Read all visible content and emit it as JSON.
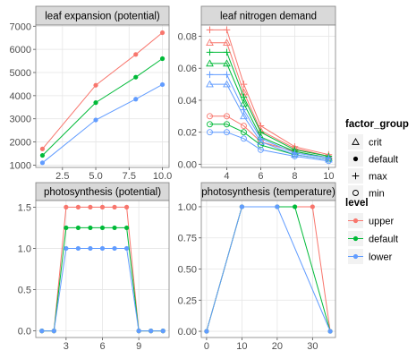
{
  "colors": {
    "upper": "#F8766D",
    "default": "#00BA38",
    "lower": "#619CFF",
    "panel_bg": "#FFFFFF",
    "panel_border": "#7F7F7F",
    "grid_major": "#E5E5E5",
    "strip_bg": "#D9D9D9",
    "strip_border": "#7F7F7F",
    "text": "#000000",
    "tick_text": "#4D4D4D"
  },
  "chart_data": [
    {
      "type": "line",
      "title": "leaf expansion (potential)",
      "xlim": [
        0.5,
        10.5
      ],
      "ylim": [
        900,
        7050
      ],
      "xticks": [
        2.5,
        5.0,
        7.5,
        10.0
      ],
      "xtick_labels": [
        "2.5",
        "5.0",
        "7.5",
        "10.0"
      ],
      "yticks": [
        1000,
        2000,
        3000,
        4000,
        5000,
        6000,
        7000
      ],
      "ytick_labels": [
        "1000",
        "2000",
        "3000",
        "4000",
        "5000",
        "6000",
        "7000"
      ],
      "grid": true,
      "x": [
        1,
        5,
        8,
        10
      ],
      "series": [
        {
          "level": "upper",
          "values": [
            1700,
            4450,
            5780,
            6720
          ]
        },
        {
          "level": "default",
          "values": [
            1420,
            3700,
            4800,
            5600
          ]
        },
        {
          "level": "lower",
          "values": [
            1100,
            2950,
            3850,
            4480
          ]
        }
      ]
    },
    {
      "type": "line",
      "title": "leaf nitrogen demand",
      "xlim": [
        2.5,
        10.4
      ],
      "ylim": [
        -0.002,
        0.087
      ],
      "xticks": [
        4,
        6,
        8,
        10
      ],
      "xtick_labels": [
        "4",
        "6",
        "8",
        "10"
      ],
      "yticks": [
        0.0,
        0.02,
        0.04,
        0.06,
        0.08
      ],
      "ytick_labels": [
        "0.00",
        "0.02",
        "0.04",
        "0.06",
        "0.08"
      ],
      "grid": true,
      "x": [
        3,
        4,
        5,
        6,
        8,
        10
      ],
      "series": [
        {
          "level": "upper",
          "factor_group": "max",
          "values": [
            0.084,
            0.084,
            0.05,
            0.024,
            0.011,
            0.006
          ]
        },
        {
          "level": "upper",
          "factor_group": "crit",
          "values": [
            0.076,
            0.076,
            0.045,
            0.021,
            0.01,
            0.005
          ]
        },
        {
          "level": "upper",
          "factor_group": "min",
          "values": [
            0.03,
            0.03,
            0.024,
            0.014,
            0.008,
            0.004
          ]
        },
        {
          "level": "default",
          "factor_group": "max",
          "values": [
            0.07,
            0.07,
            0.042,
            0.02,
            0.009,
            0.005
          ]
        },
        {
          "level": "default",
          "factor_group": "crit",
          "values": [
            0.063,
            0.063,
            0.038,
            0.017,
            0.008,
            0.004
          ]
        },
        {
          "level": "default",
          "factor_group": "min",
          "values": [
            0.025,
            0.025,
            0.02,
            0.012,
            0.006,
            0.003
          ]
        },
        {
          "level": "lower",
          "factor_group": "max",
          "values": [
            0.056,
            0.056,
            0.034,
            0.016,
            0.007,
            0.004
          ]
        },
        {
          "level": "lower",
          "factor_group": "crit",
          "values": [
            0.05,
            0.05,
            0.03,
            0.014,
            0.006,
            0.003
          ]
        },
        {
          "level": "lower",
          "factor_group": "min",
          "values": [
            0.02,
            0.02,
            0.016,
            0.009,
            0.005,
            0.002
          ]
        }
      ]
    },
    {
      "type": "line",
      "title": "photosynthesis (potential)",
      "xlim": [
        0.5,
        11.5
      ],
      "ylim": [
        -0.08,
        1.58
      ],
      "xticks": [
        3,
        6,
        9
      ],
      "xtick_labels": [
        "3",
        "6",
        "9"
      ],
      "yticks": [
        0.0,
        0.5,
        1.0,
        1.5
      ],
      "ytick_labels": [
        "0.0",
        "0.5",
        "1.0",
        "1.5"
      ],
      "grid": true,
      "x": [
        1,
        2,
        3,
        4,
        5,
        6,
        7,
        8,
        9,
        10,
        11
      ],
      "series": [
        {
          "level": "upper",
          "values": [
            0,
            0,
            1.5,
            1.5,
            1.5,
            1.5,
            1.5,
            1.5,
            0,
            0,
            0
          ]
        },
        {
          "level": "default",
          "values": [
            0,
            0,
            1.25,
            1.25,
            1.25,
            1.25,
            1.25,
            1.25,
            0,
            0,
            0
          ]
        },
        {
          "level": "lower",
          "values": [
            0,
            0,
            1.0,
            1.0,
            1.0,
            1.0,
            1.0,
            1.0,
            0,
            0,
            0
          ]
        }
      ]
    },
    {
      "type": "line",
      "title": "photosynthesis (temperature)",
      "xlim": [
        -1.5,
        36.5
      ],
      "ylim": [
        -0.05,
        1.05
      ],
      "xticks": [
        0,
        10,
        20,
        30
      ],
      "xtick_labels": [
        "0",
        "10",
        "20",
        "30"
      ],
      "yticks": [
        0.0,
        0.25,
        0.5,
        0.75,
        1.0
      ],
      "ytick_labels": [
        "0.00",
        "0.25",
        "0.50",
        "0.75",
        "1.00"
      ],
      "grid": true,
      "series": [
        {
          "level": "upper",
          "x": [
            0,
            10,
            20,
            30,
            35
          ],
          "values": [
            0,
            1,
            1,
            1,
            0
          ]
        },
        {
          "level": "default",
          "x": [
            0,
            10,
            20,
            25,
            35
          ],
          "values": [
            0,
            1,
            1,
            1,
            0
          ]
        },
        {
          "level": "lower",
          "x": [
            0,
            10,
            20,
            35
          ],
          "values": [
            0,
            1,
            1,
            0
          ]
        }
      ]
    }
  ],
  "legends": {
    "factor_group": {
      "title": "factor_group",
      "items": [
        {
          "label": "crit",
          "shape": "triangle"
        },
        {
          "label": "default",
          "shape": "dot"
        },
        {
          "label": "max",
          "shape": "plus"
        },
        {
          "label": "min",
          "shape": "circle"
        }
      ]
    },
    "level": {
      "title": "level",
      "items": [
        {
          "label": "upper",
          "level": "upper"
        },
        {
          "label": "default",
          "level": "default"
        },
        {
          "label": "lower",
          "level": "lower"
        }
      ]
    }
  }
}
